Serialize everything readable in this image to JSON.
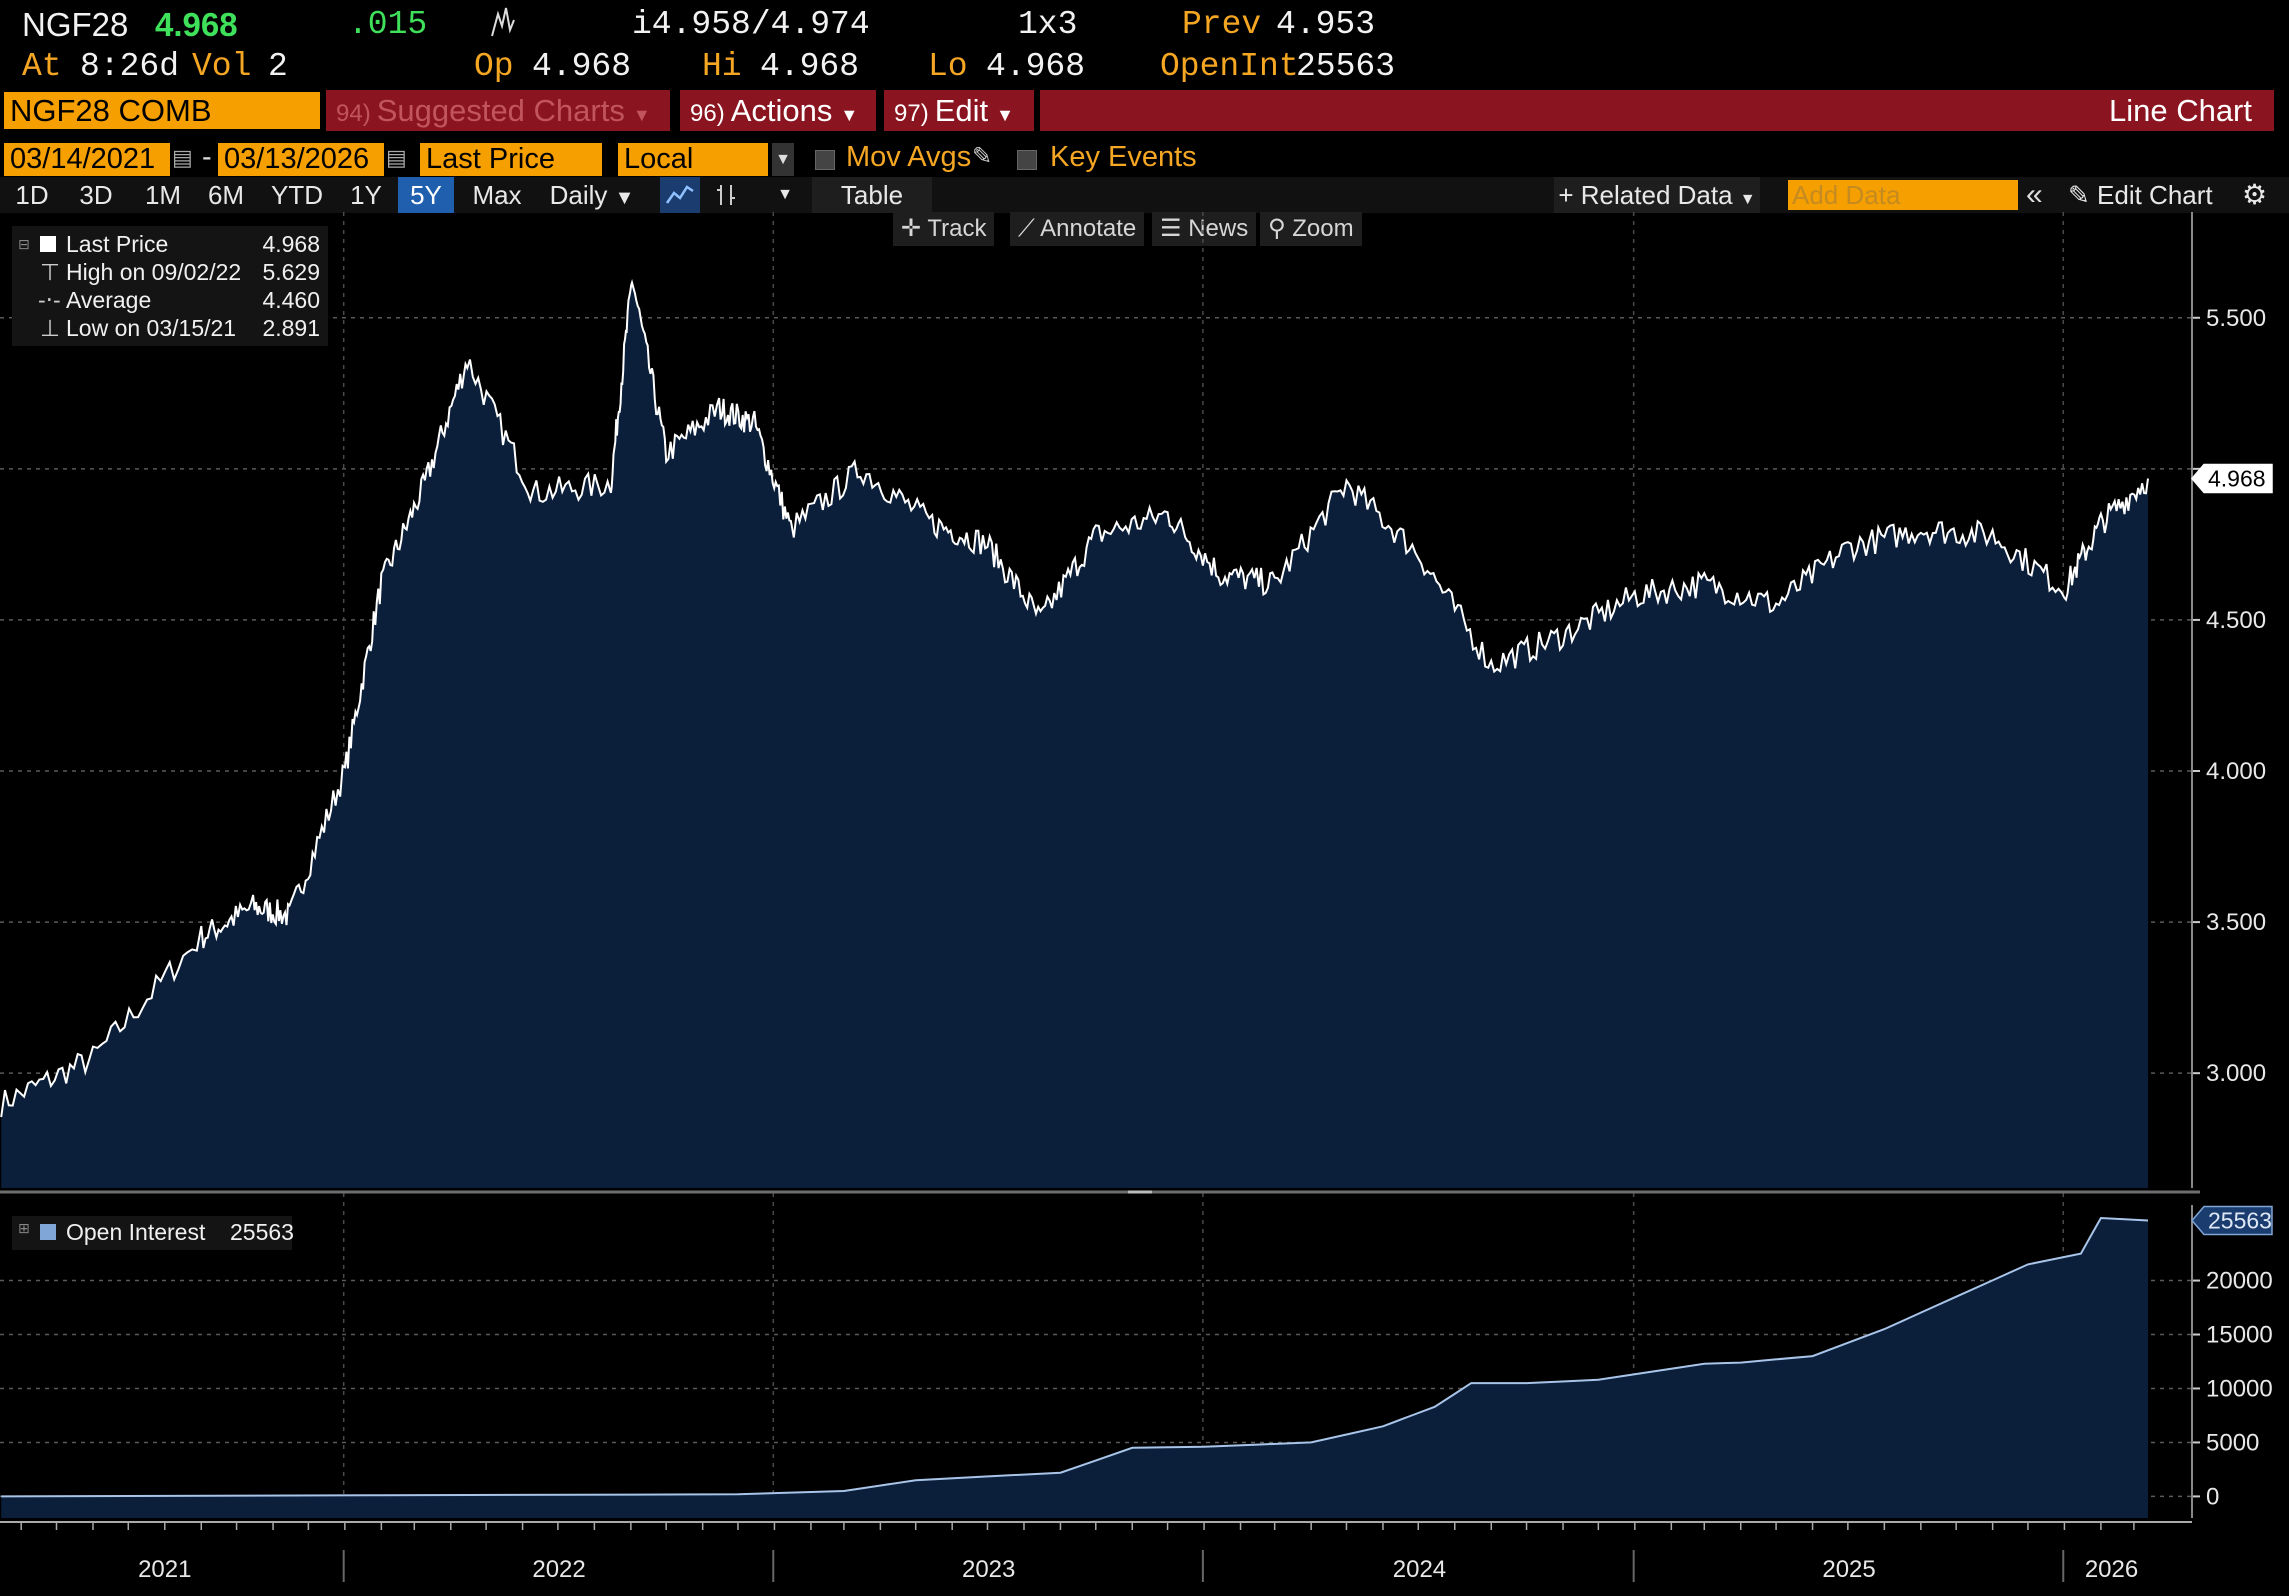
{
  "quote": {
    "ticker": "NGF28",
    "last": "4.968",
    "change": ".015",
    "bid_ask": "i4.958/4.974",
    "size": "1x3",
    "prev_label": "Prev",
    "prev": "4.953",
    "at_label": "At",
    "time": "8:26d",
    "vol_label": "Vol",
    "vol": "2",
    "op_label": "Op",
    "op": "4.968",
    "hi_label": "Hi",
    "hi": "4.968",
    "lo_label": "Lo",
    "lo": "4.968",
    "openint_label": "OpenInt",
    "openint": "25563"
  },
  "menubar": {
    "security": "NGF28 COMB Comdty",
    "suggested_num": "94)",
    "suggested": "Suggested Charts",
    "actions_num": "96)",
    "actions": "Actions",
    "edit_num": "97)",
    "edit": "Edit",
    "chart_type": "Line Chart"
  },
  "settings": {
    "start_date": "03/14/2021",
    "date_sep": "-",
    "end_date": "03/13/2026",
    "field": "Last Price",
    "currency": "Local CCY",
    "mov_avgs": "Mov Avgs",
    "key_events": "Key Events"
  },
  "periods": {
    "items": [
      "1D",
      "3D",
      "1M",
      "6M",
      "YTD",
      "1Y",
      "5Y",
      "Max"
    ],
    "selected": "5Y",
    "frequency": "Daily",
    "table": "Table",
    "related_data": "Related Data",
    "add_data_placeholder": "Add Data",
    "edit_chart": "Edit Chart"
  },
  "tools": {
    "track": "Track",
    "annotate": "Annotate",
    "news": "News",
    "zoom": "Zoom"
  },
  "legend_price": {
    "last_label": "Last Price",
    "last_value": "4.968",
    "high_label": "High on 09/02/22",
    "high_value": "5.629",
    "avg_label": "Average",
    "avg_value": "4.460",
    "low_label": "Low on 03/15/21",
    "low_value": "2.891"
  },
  "legend_oi": {
    "label": "Open Interest",
    "value": "25563"
  },
  "colors": {
    "background": "#000000",
    "area_fill": "#0b1f3a",
    "line": "#ffffff",
    "orange": "#f5a000",
    "menu_red": "#8a1520",
    "green": "#3fe05a",
    "selected_blue": "#1f5fae"
  },
  "chart_data": [
    {
      "type": "area",
      "series": [
        {
          "name": "Last Price",
          "x": [
            "2021-03-15",
            "2021-06-01",
            "2021-09-01",
            "2021-10-15",
            "2021-11-15",
            "2022-01-01",
            "2022-02-01",
            "2022-03-10",
            "2022-04-15",
            "2022-06-10",
            "2022-08-15",
            "2022-09-02",
            "2022-10-01",
            "2022-11-15",
            "2022-12-15",
            "2023-01-15",
            "2023-03-15",
            "2023-05-15",
            "2023-07-01",
            "2023-08-15",
            "2023-10-01",
            "2023-12-01",
            "2024-01-15",
            "2024-03-01",
            "2024-05-01",
            "2024-07-01",
            "2024-09-01",
            "2024-11-01",
            "2025-01-01",
            "2025-03-01",
            "2025-05-01",
            "2025-07-01",
            "2025-09-01",
            "2025-11-01",
            "2026-01-01",
            "2026-02-01",
            "2026-03-13"
          ],
          "values": [
            2.9,
            3.05,
            3.45,
            3.55,
            3.52,
            4.0,
            4.62,
            4.95,
            5.36,
            4.92,
            4.95,
            5.63,
            5.05,
            5.2,
            5.15,
            4.8,
            5.0,
            4.82,
            4.75,
            4.5,
            4.78,
            4.85,
            4.65,
            4.62,
            4.95,
            4.72,
            4.35,
            4.45,
            4.58,
            4.62,
            4.55,
            4.74,
            4.8,
            4.78,
            4.6,
            4.82,
            4.968
          ]
        }
      ],
      "xlim": [
        "2021-03-14",
        "2026-03-13"
      ],
      "ylim": [
        2.62,
        5.85
      ],
      "yticks": [
        3.0,
        3.5,
        4.0,
        4.5,
        5.0,
        5.5
      ],
      "ytick_labels": [
        "3.000",
        "3.500",
        "4.000",
        "4.500",
        "",
        "5.500"
      ],
      "last_value_label": "4.968",
      "grid": true
    },
    {
      "type": "area",
      "series": [
        {
          "name": "Open Interest",
          "x": [
            "2021-03-15",
            "2022-12-01",
            "2023-03-01",
            "2023-05-01",
            "2023-09-01",
            "2023-11-01",
            "2024-01-01",
            "2024-04-01",
            "2024-06-01",
            "2024-07-15",
            "2024-08-15",
            "2024-10-01",
            "2024-12-01",
            "2025-03-01",
            "2025-04-01",
            "2025-06-01",
            "2025-08-01",
            "2025-10-01",
            "2025-12-01",
            "2026-01-15",
            "2026-02-01",
            "2026-03-13"
          ],
          "values": [
            0,
            200,
            500,
            1500,
            2200,
            4500,
            4600,
            5000,
            6500,
            8300,
            10500,
            10500,
            10800,
            12300,
            12400,
            13000,
            15500,
            18500,
            21500,
            22500,
            25800,
            25563
          ]
        }
      ],
      "xlim": [
        "2021-03-14",
        "2026-03-13"
      ],
      "ylim": [
        -2000,
        27000
      ],
      "yticks": [
        0,
        5000,
        10000,
        15000,
        20000
      ],
      "ytick_labels": [
        "0",
        "5000",
        "10000",
        "15000",
        "20000"
      ],
      "last_value_label": "25563",
      "grid": true
    }
  ],
  "xaxis": {
    "labels": [
      {
        "text": "2021",
        "date": "2021-08-01"
      },
      {
        "text": "2022",
        "date": "2022-07-02"
      },
      {
        "text": "2023",
        "date": "2023-07-02"
      },
      {
        "text": "2024",
        "date": "2024-07-02"
      },
      {
        "text": "2025",
        "date": "2025-07-02"
      },
      {
        "text": "2026",
        "date": "2026-02-10"
      }
    ],
    "year_separators": [
      "2021-12-31",
      "2022-12-31",
      "2023-12-31",
      "2024-12-31",
      "2025-12-31"
    ]
  }
}
